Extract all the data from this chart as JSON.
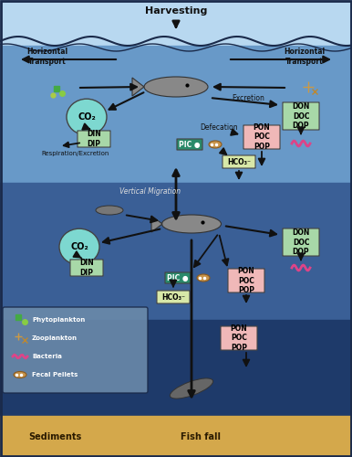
{
  "fig_width": 3.86,
  "fig_height": 5.0,
  "dpi": 100,
  "bg_top_color": "#a8c8e8",
  "bg_mid_color": "#4a6fa5",
  "bg_deep_color": "#1e3a5f",
  "sediment_color": "#d4a84b",
  "sediment_text_color": "#2a1a00",
  "ocean_border_color": "#1a2a4a",
  "title_text": "Harvesting",
  "horiz_left": "Horizontal\nTransport",
  "horiz_right": "Horizontal\nTransport",
  "vertical_migration": "Vertical Migration",
  "resp_excretion": "Respiration/Excretion",
  "defecation": "Defecation",
  "excretion": "Excretion",
  "sediments": "Sediments",
  "fish_fall": "Fish fall",
  "co2_color": "#7dd8d0",
  "din_dip_color": "#a8d8a8",
  "don_doc_dop_color": "#a8d8a8",
  "pon_poc_pop_color": "#f0b8b8",
  "hco3_color": "#d8e8a8",
  "pic_color": "#2a8a6a",
  "legend_bg": "#7a9ab8"
}
